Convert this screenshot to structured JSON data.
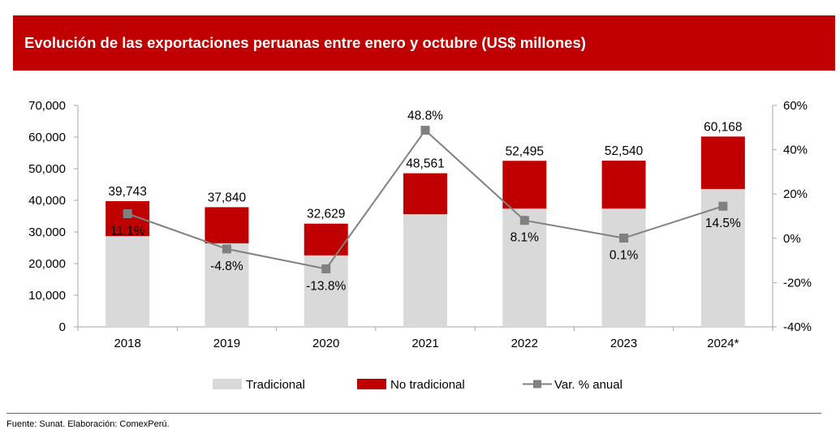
{
  "header": {
    "title": "Evolución de las exportaciones peruanas entre enero y octubre (US$ millones)"
  },
  "footer": {
    "source": "Fuente: Sunat. Elaboración: ComexPerú."
  },
  "colors": {
    "traditional": "#d9d9d9",
    "non_traditional": "#c00000",
    "line": "#808080",
    "axis": "#a6a6a6",
    "banner": "#c00000"
  },
  "chart_data": {
    "type": "bar",
    "stacked": true,
    "title": "Evolución de las exportaciones peruanas entre enero y octubre (US$ millones)",
    "categories": [
      "2018",
      "2019",
      "2020",
      "2021",
      "2022",
      "2023",
      "2024*"
    ],
    "series": [
      {
        "name": "Tradicional",
        "type": "bar",
        "axis": "left",
        "values": [
          28700,
          26400,
          22600,
          35600,
          37400,
          37400,
          43600
        ]
      },
      {
        "name": "No tradicional",
        "type": "bar",
        "axis": "left",
        "values": [
          11043,
          11440,
          10029,
          12961,
          15095,
          15140,
          16568
        ]
      },
      {
        "name": "Var. % anual",
        "type": "line",
        "axis": "right",
        "values": [
          11.1,
          -4.8,
          -13.8,
          48.8,
          8.1,
          0.1,
          14.5
        ]
      }
    ],
    "totals": [
      39743,
      37840,
      32629,
      48561,
      52495,
      52540,
      60168
    ],
    "total_labels": [
      "39,743",
      "37,840",
      "32,629",
      "48,561",
      "52,495",
      "52,540",
      "60,168"
    ],
    "pct_labels": [
      "11.1%",
      "-4.8%",
      "-13.8%",
      "48.8%",
      "8.1%",
      "0.1%",
      "14.5%"
    ],
    "pct_label_position": [
      "below",
      "below",
      "below",
      "above",
      "below",
      "below",
      "below"
    ],
    "ylim": [
      0,
      70000
    ],
    "y_ticks": [
      0,
      10000,
      20000,
      30000,
      40000,
      50000,
      60000,
      70000
    ],
    "y_tick_labels": [
      "0",
      "10,000",
      "20,000",
      "30,000",
      "40,000",
      "50,000",
      "60,000",
      "70,000"
    ],
    "y2lim": [
      -40,
      60
    ],
    "y2_ticks": [
      -40,
      -20,
      0,
      20,
      40,
      60
    ],
    "y2_tick_labels": [
      "-40%",
      "-20%",
      "0%",
      "20%",
      "40%",
      "60%"
    ],
    "xlabel": "",
    "ylabel": "",
    "y2label": "",
    "grid": false,
    "legend": {
      "position": "bottom",
      "entries": [
        "Tradicional",
        "No tradicional",
        "Var. % anual"
      ]
    }
  }
}
